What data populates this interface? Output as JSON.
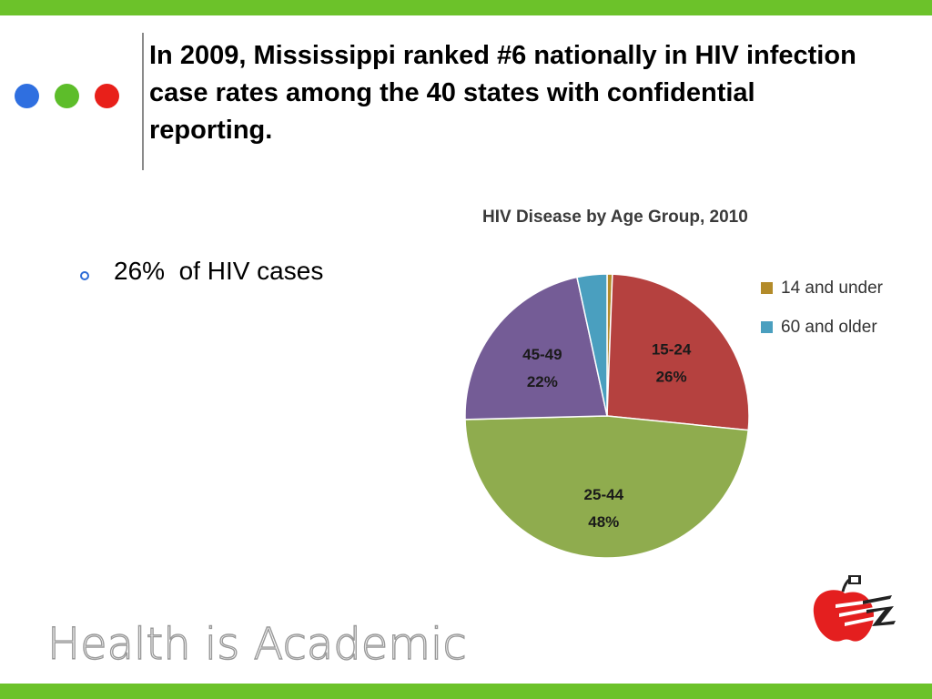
{
  "colors": {
    "bar_green": "#6cc22a",
    "dot_blue": "#2f6fe0",
    "dot_green": "#5dbd2a",
    "dot_red": "#e8201a"
  },
  "slide": {
    "title": "In 2009, Mississippi ranked #6 nationally in HIV infection case rates among the 40 states with confidential reporting.",
    "bullet": "26%  of HIV cases"
  },
  "footer": {
    "text": "Health is Academic"
  },
  "chart_data": {
    "type": "pie",
    "title": "HIV Disease by Age Group, 2010",
    "slices": [
      {
        "label": "14 and under",
        "value": 0.6,
        "color": "#b38b2a",
        "in_legend": true
      },
      {
        "label": "15-24",
        "value": 26,
        "color": "#b5413f",
        "pct_label": "26%",
        "in_legend": false
      },
      {
        "label": "25-44",
        "value": 48,
        "color": "#8fac4e",
        "pct_label": "48%",
        "in_legend": false
      },
      {
        "label": "45-49",
        "value": 22,
        "color": "#745c96",
        "pct_label": "22%",
        "in_legend": false
      },
      {
        "label": "60 and older",
        "value": 3.4,
        "color": "#4a9fbf",
        "in_legend": true
      }
    ],
    "legend_position": "right"
  }
}
